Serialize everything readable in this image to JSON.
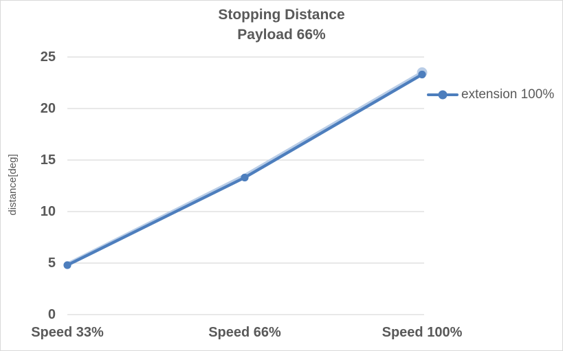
{
  "title": {
    "line1": "Stopping Distance",
    "line2": "Payload 66%"
  },
  "legend": {
    "entries": [
      {
        "label": "extension 100%",
        "color": "#4d7ebd"
      }
    ]
  },
  "colors": {
    "accent": "#4d7ebd",
    "ghost": "#b9cde7",
    "text": "#595959",
    "grid": "#d9d9d9",
    "border": "#d9d9d9",
    "background": "#ffffff"
  },
  "chart_data": {
    "type": "line",
    "title": "Stopping Distance",
    "subtitle": "Payload 66%",
    "categories": [
      "Speed 33%",
      "Speed 66%",
      "Speed 100%"
    ],
    "series": [
      {
        "name": "extension 100%",
        "values": [
          4.8,
          13.3,
          23.3
        ],
        "color": "#4d7ebd",
        "marker": "circle"
      }
    ],
    "ghost_series": {
      "name": "faint-overlapping-line (no legend entry)",
      "values": [
        4.9,
        13.5,
        23.5
      ],
      "color": "#b9cde7"
    },
    "xlabel": "",
    "ylabel": "distance[deg]",
    "ylim": [
      0,
      25
    ],
    "yticks": [
      0,
      5,
      10,
      15,
      20,
      25
    ],
    "grid": true,
    "legend_position": "right"
  }
}
